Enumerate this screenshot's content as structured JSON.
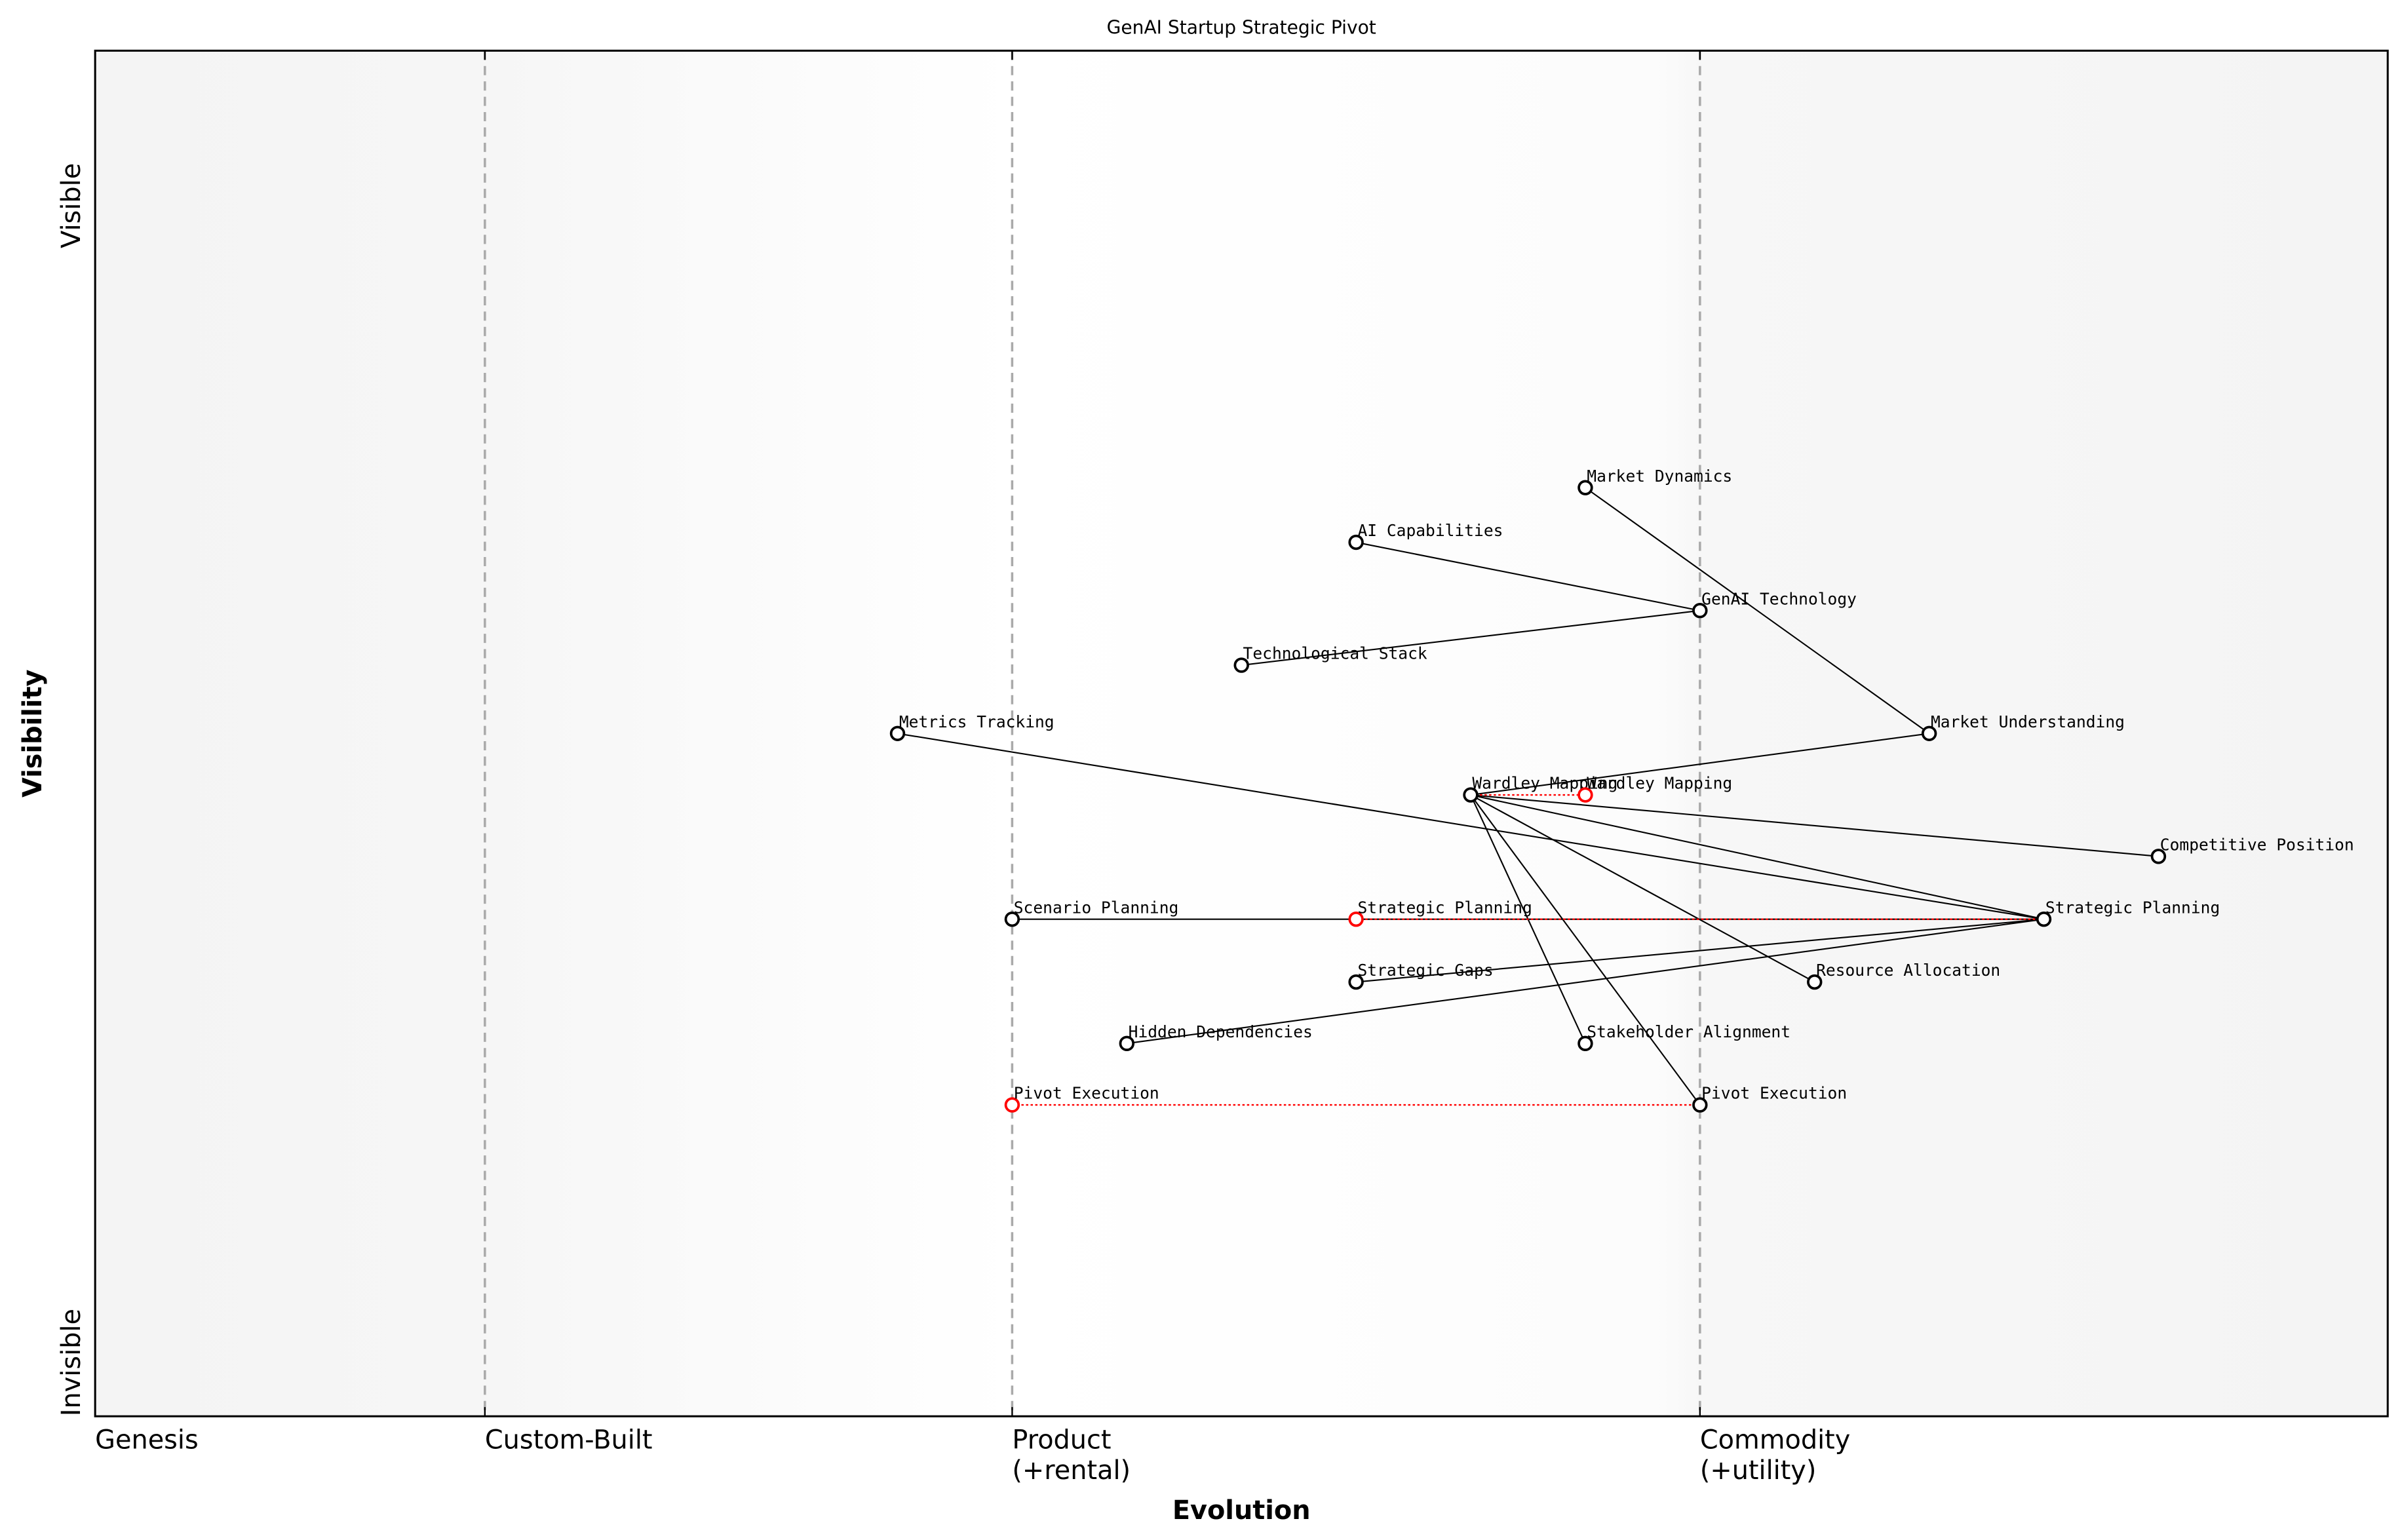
{
  "chart_data": {
    "type": "scatter",
    "title": "GenAI Startup Strategic Pivot",
    "xlabel": "Evolution",
    "ylabel": "Visibility",
    "xlim": [
      0,
      1
    ],
    "ylim": [
      0,
      1
    ],
    "y_ticks": [
      {
        "label": "Invisible",
        "value": 0
      },
      {
        "label": "Visible",
        "value": 0.9
      }
    ],
    "x_stages": [
      {
        "label": "Genesis",
        "value": 0
      },
      {
        "label": "Custom-Built",
        "value": 0.17
      },
      {
        "label": "Product\n(+rental)",
        "value": 0.4
      },
      {
        "label": "Commodity\n(+utility)",
        "value": 0.7
      }
    ],
    "colors": {
      "node": "#000000",
      "evolved_node": "#ff0000",
      "link": "#000000",
      "evolution_link": "#ff0000",
      "stage_line": "#aaaaaa"
    },
    "components": [
      {
        "id": "md",
        "name": "Market Dynamics",
        "x": 0.65,
        "y": 0.68
      },
      {
        "id": "ai",
        "name": "AI Capabilities",
        "x": 0.55,
        "y": 0.64
      },
      {
        "id": "genai",
        "name": "GenAI Technology",
        "x": 0.7,
        "y": 0.59
      },
      {
        "id": "ts",
        "name": "Technological Stack",
        "x": 0.5,
        "y": 0.55
      },
      {
        "id": "mt",
        "name": "Metrics Tracking",
        "x": 0.35,
        "y": 0.5
      },
      {
        "id": "mu",
        "name": "Market Understanding",
        "x": 0.8,
        "y": 0.5
      },
      {
        "id": "wm",
        "name": "Wardley Mapping",
        "x": 0.6,
        "y": 0.455
      },
      {
        "id": "wm2",
        "name": "Wardley Mapping",
        "x": 0.65,
        "y": 0.455,
        "evolved": true
      },
      {
        "id": "cp",
        "name": "Competitive Position",
        "x": 0.9,
        "y": 0.41
      },
      {
        "id": "sp0",
        "name": "Scenario Planning",
        "x": 0.4,
        "y": 0.364
      },
      {
        "id": "sp2",
        "name": "Strategic Planning",
        "x": 0.55,
        "y": 0.364,
        "evolved": true
      },
      {
        "id": "sp",
        "name": "Strategic Planning",
        "x": 0.85,
        "y": 0.364
      },
      {
        "id": "sg",
        "name": "Strategic Gaps",
        "x": 0.55,
        "y": 0.318
      },
      {
        "id": "ra",
        "name": "Resource Allocation",
        "x": 0.75,
        "y": 0.318
      },
      {
        "id": "hd",
        "name": "Hidden Dependencies",
        "x": 0.45,
        "y": 0.273
      },
      {
        "id": "sa",
        "name": "Stakeholder Alignment",
        "x": 0.65,
        "y": 0.273
      },
      {
        "id": "pe2",
        "name": "Pivot Execution",
        "x": 0.4,
        "y": 0.228,
        "evolved": true
      },
      {
        "id": "pe",
        "name": "Pivot Execution",
        "x": 0.7,
        "y": 0.228
      }
    ],
    "links": [
      [
        "md",
        "mu"
      ],
      [
        "ai",
        "genai"
      ],
      [
        "ts",
        "genai"
      ],
      [
        "mu",
        "wm"
      ],
      [
        "mt",
        "sp"
      ],
      [
        "wm",
        "cp"
      ],
      [
        "wm",
        "sp"
      ],
      [
        "wm",
        "ra"
      ],
      [
        "wm",
        "sa"
      ],
      [
        "wm",
        "pe"
      ],
      [
        "sp0",
        "sp"
      ],
      [
        "sg",
        "sp"
      ],
      [
        "hd",
        "sp"
      ]
    ],
    "evolution_links": [
      [
        "wm",
        "wm2"
      ],
      [
        "sp2",
        "sp"
      ],
      [
        "pe2",
        "pe"
      ]
    ]
  }
}
